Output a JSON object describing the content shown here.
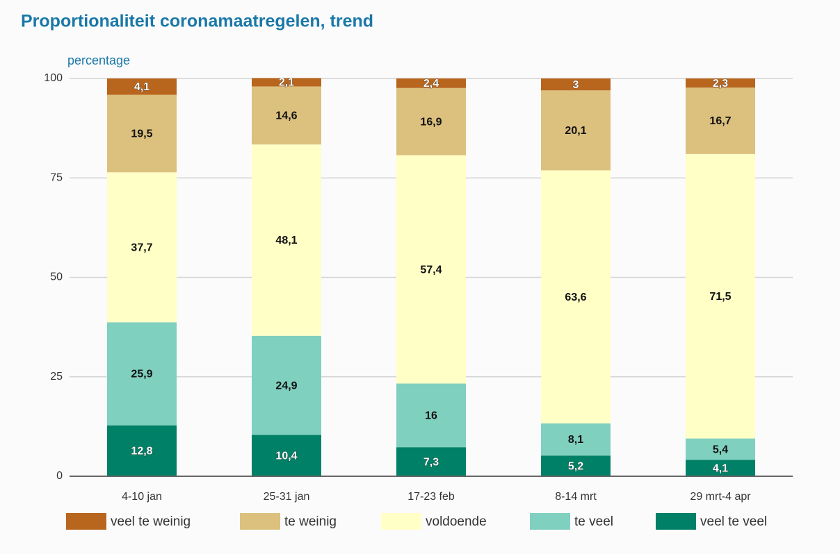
{
  "chart_data": {
    "type": "stacked_bar",
    "title": "Proportionaliteit coronamaatregelen, trend",
    "y_label": "percentage",
    "categories": [
      "4-10 jan",
      "25-31 jan",
      "17-23 feb",
      "8-14 mrt",
      "29 mrt-4 apr"
    ],
    "series": [
      {
        "name": "veel te weinig",
        "color": "#b8651e",
        "values": [
          4.1,
          2.1,
          2.4,
          3,
          2.3
        ],
        "value_labels": [
          "4,1",
          "2,1",
          "2,4",
          "3",
          "2,3"
        ]
      },
      {
        "name": "te weinig",
        "color": "#dcc07e",
        "values": [
          19.5,
          14.6,
          16.9,
          20.1,
          16.7
        ],
        "value_labels": [
          "19,5",
          "14,6",
          "16,9",
          "20,1",
          "16,7"
        ]
      },
      {
        "name": "voldoende",
        "color": "#ffffc6",
        "values": [
          37.7,
          48.1,
          57.4,
          63.6,
          71.5
        ],
        "value_labels": [
          "37,7",
          "48,1",
          "57,4",
          "63,6",
          "71,5"
        ]
      },
      {
        "name": "te veel",
        "color": "#80d0c0",
        "values": [
          25.9,
          24.9,
          16,
          8.1,
          5.4
        ],
        "value_labels": [
          "25,9",
          "24,9",
          "16",
          "8,1",
          "5,4"
        ]
      },
      {
        "name": "veel te veel",
        "color": "#008066",
        "values": [
          12.8,
          10.4,
          7.3,
          5.2,
          4.1
        ],
        "value_labels": [
          "12,8",
          "10,4",
          "7,3",
          "5,2",
          "4,1"
        ]
      }
    ],
    "ylim": [
      0,
      100
    ],
    "yticks": [
      0,
      25,
      50,
      75,
      100
    ],
    "grid": true,
    "legend": "bottom"
  }
}
